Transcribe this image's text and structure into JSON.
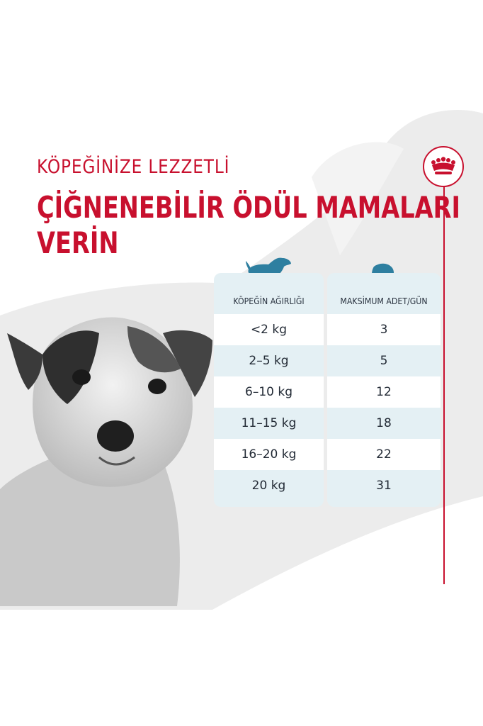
{
  "headline": {
    "line1": "KÖPEĞİNİZE LEZZETLİ",
    "line2": "ÇİĞNENEBİLİR ÖDÜL MAMALARI",
    "line3": "VERİN"
  },
  "colors": {
    "brand_red": "#c8102e",
    "table_blue": "#e4f0f4",
    "icon_teal": "#2e7fa0",
    "background_gray": "#ececec"
  },
  "icons": {
    "logo": "crown-icon",
    "weight_column": "dog-icon",
    "amount_column": "treat-icon"
  },
  "table": {
    "headers": [
      "KÖPEĞİN AĞIRLIĞI",
      "MAKSİMUM ADET/GÜN"
    ],
    "rows": [
      {
        "weight": "<2 kg",
        "amount": "3"
      },
      {
        "weight": "2–5 kg",
        "amount": "5"
      },
      {
        "weight": "6–10 kg",
        "amount": "12"
      },
      {
        "weight": "11–15 kg",
        "amount": "18"
      },
      {
        "weight": "16–20 kg",
        "amount": "22"
      },
      {
        "weight": "20 kg",
        "amount": "31"
      }
    ]
  }
}
